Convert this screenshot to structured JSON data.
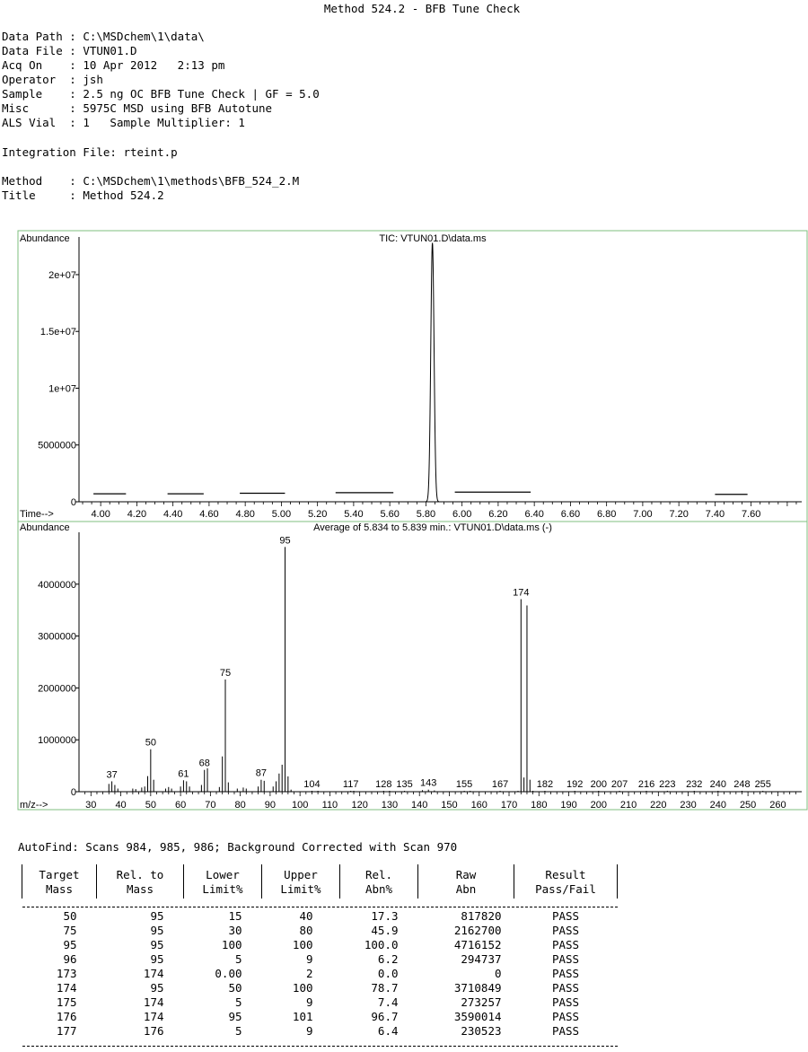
{
  "report_title": "Method 524.2 - BFB Tune Check",
  "header": [
    {
      "key": "Data Path ",
      "value": "C:\\MSDchem\\1\\data\\"
    },
    {
      "key": "Data File ",
      "value": "VTUN01.D"
    },
    {
      "key": "Acq On    ",
      "value": "10 Apr 2012   2:13 pm"
    },
    {
      "key": "Operator  ",
      "value": "jsh"
    },
    {
      "key": "Sample    ",
      "value": "2.5 ng OC BFB Tune Check | GF = 5.0"
    },
    {
      "key": "Misc      ",
      "value": "5975C MSD using BFB Autotune"
    },
    {
      "key": "ALS Vial  ",
      "value": "1   Sample Multiplier: 1"
    }
  ],
  "integration_file": "Integration File: rteint.p",
  "method_lines": [
    {
      "key": "Method    ",
      "value": "C:\\MSDchem\\1\\methods\\BFB_524_2.M"
    },
    {
      "key": "Title     ",
      "value": "Method 524.2"
    }
  ],
  "chart_data": [
    {
      "type": "line",
      "title": "TIC: VTUN01.D\\data.ms",
      "ylabel": "Abundance",
      "xlabel": "Time-->",
      "xlim": [
        3.88,
        7.88
      ],
      "ylim": [
        0,
        23000000
      ],
      "x_ticks": [
        "4.00",
        "4.20",
        "4.40",
        "4.60",
        "4.80",
        "5.00",
        "5.20",
        "5.40",
        "5.60",
        "5.80",
        "6.00",
        "6.20",
        "6.40",
        "6.60",
        "6.80",
        "7.00",
        "7.20",
        "7.40",
        "7.60"
      ],
      "y_ticks": [
        "0",
        "5000000",
        "1e+07",
        "1.5e+07",
        "2e+07"
      ],
      "baseline_segments": [
        {
          "x": [
            3.96,
            4.14
          ],
          "y": 700000
        },
        {
          "x": [
            4.37,
            4.57
          ],
          "y": 700000
        },
        {
          "x": [
            4.77,
            5.02
          ],
          "y": 750000
        },
        {
          "x": [
            5.3,
            5.62
          ],
          "y": 800000
        },
        {
          "x": [
            5.96,
            6.38
          ],
          "y": 850000
        },
        {
          "x": [
            7.4,
            7.58
          ],
          "y": 650000
        }
      ],
      "peak": {
        "center": 5.836,
        "height": 22800000,
        "width": 0.009
      }
    },
    {
      "type": "bar",
      "title": "Average of 5.834 to 5.839 min.: VTUN01.D\\data.ms (-)",
      "ylabel": "Abundance",
      "xlabel": "m/z-->",
      "xlim": [
        26,
        268
      ],
      "ylim": [
        0,
        5000000
      ],
      "x_ticks": [
        "30",
        "40",
        "50",
        "60",
        "70",
        "80",
        "90",
        "100",
        "110",
        "120",
        "130",
        "140",
        "150",
        "160",
        "170",
        "180",
        "190",
        "200",
        "210",
        "220",
        "230",
        "240",
        "250",
        "260"
      ],
      "y_ticks": [
        "0",
        "1000000",
        "2000000",
        "3000000",
        "4000000"
      ],
      "labeled_peaks": [
        {
          "mz": 37,
          "abn": 200000,
          "label": "37"
        },
        {
          "mz": 50,
          "abn": 817820,
          "label": "50"
        },
        {
          "mz": 61,
          "abn": 220000,
          "label": "61"
        },
        {
          "mz": 68,
          "abn": 420000,
          "label": "68"
        },
        {
          "mz": 75,
          "abn": 2162700,
          "label": "75"
        },
        {
          "mz": 87,
          "abn": 230000,
          "label": "87"
        },
        {
          "mz": 95,
          "abn": 4716152,
          "label": "95"
        },
        {
          "mz": 104,
          "abn": 10000,
          "label": "104"
        },
        {
          "mz": 117,
          "abn": 12000,
          "label": "117"
        },
        {
          "mz": 128,
          "abn": 12000,
          "label": "128"
        },
        {
          "mz": 135,
          "abn": 10000,
          "label": "135"
        },
        {
          "mz": 143,
          "abn": 40000,
          "label": "143"
        },
        {
          "mz": 155,
          "abn": 10000,
          "label": "155"
        },
        {
          "mz": 167,
          "abn": 10000,
          "label": "167"
        },
        {
          "mz": 174,
          "abn": 3710849,
          "label": "174"
        },
        {
          "mz": 182,
          "abn": 10000,
          "label": "182"
        },
        {
          "mz": 192,
          "abn": 8000,
          "label": "192"
        },
        {
          "mz": 200,
          "abn": 8000,
          "label": "200"
        },
        {
          "mz": 207,
          "abn": 10000,
          "label": "207"
        },
        {
          "mz": 216,
          "abn": 8000,
          "label": "216"
        },
        {
          "mz": 223,
          "abn": 8000,
          "label": "223"
        },
        {
          "mz": 232,
          "abn": 8000,
          "label": "232"
        },
        {
          "mz": 240,
          "abn": 8000,
          "label": "240"
        },
        {
          "mz": 248,
          "abn": 8000,
          "label": "248"
        },
        {
          "mz": 255,
          "abn": 8000,
          "label": "255"
        }
      ],
      "minor_peaks": [
        {
          "mz": 36,
          "abn": 150000
        },
        {
          "mz": 38,
          "abn": 130000
        },
        {
          "mz": 39,
          "abn": 60000
        },
        {
          "mz": 44,
          "abn": 60000
        },
        {
          "mz": 45,
          "abn": 50000
        },
        {
          "mz": 47,
          "abn": 80000
        },
        {
          "mz": 48,
          "abn": 100000
        },
        {
          "mz": 49,
          "abn": 300000
        },
        {
          "mz": 51,
          "abn": 230000
        },
        {
          "mz": 55,
          "abn": 60000
        },
        {
          "mz": 56,
          "abn": 90000
        },
        {
          "mz": 57,
          "abn": 60000
        },
        {
          "mz": 60,
          "abn": 100000
        },
        {
          "mz": 62,
          "abn": 200000
        },
        {
          "mz": 63,
          "abn": 100000
        },
        {
          "mz": 67,
          "abn": 130000
        },
        {
          "mz": 69,
          "abn": 450000
        },
        {
          "mz": 73,
          "abn": 90000
        },
        {
          "mz": 74,
          "abn": 680000
        },
        {
          "mz": 76,
          "abn": 180000
        },
        {
          "mz": 79,
          "abn": 60000
        },
        {
          "mz": 81,
          "abn": 80000
        },
        {
          "mz": 82,
          "abn": 60000
        },
        {
          "mz": 86,
          "abn": 100000
        },
        {
          "mz": 88,
          "abn": 210000
        },
        {
          "mz": 91,
          "abn": 100000
        },
        {
          "mz": 92,
          "abn": 200000
        },
        {
          "mz": 93,
          "abn": 350000
        },
        {
          "mz": 94,
          "abn": 520000
        },
        {
          "mz": 96,
          "abn": 294737
        },
        {
          "mz": 97,
          "abn": 40000
        },
        {
          "mz": 106,
          "abn": 10000
        },
        {
          "mz": 118,
          "abn": 12000
        },
        {
          "mz": 130,
          "abn": 10000
        },
        {
          "mz": 141,
          "abn": 30000
        },
        {
          "mz": 145,
          "abn": 25000
        },
        {
          "mz": 157,
          "abn": 10000
        },
        {
          "mz": 173,
          "abn": 0
        },
        {
          "mz": 175,
          "abn": 273257
        },
        {
          "mz": 176,
          "abn": 3590014
        },
        {
          "mz": 177,
          "abn": 230523
        },
        {
          "mz": 178,
          "abn": 15000
        }
      ]
    }
  ],
  "autofind": "AutoFind: Scans 984, 985, 986; Background Corrected with Scan 970",
  "table": {
    "headers": [
      [
        "Target",
        "Mass"
      ],
      [
        "Rel. to",
        "Mass"
      ],
      [
        "Lower",
        "Limit%"
      ],
      [
        "Upper",
        "Limit%"
      ],
      [
        "Rel.",
        "Abn%"
      ],
      [
        "Raw",
        "Abn"
      ],
      [
        "Result",
        "Pass/Fail"
      ]
    ],
    "rows": [
      [
        "50",
        "95",
        "15",
        "40",
        "17.3",
        "817820",
        "PASS"
      ],
      [
        "75",
        "95",
        "30",
        "80",
        "45.9",
        "2162700",
        "PASS"
      ],
      [
        "95",
        "95",
        "100",
        "100",
        "100.0",
        "4716152",
        "PASS"
      ],
      [
        "96",
        "95",
        "5",
        "9",
        "6.2",
        "294737",
        "PASS"
      ],
      [
        "173",
        "174",
        "0.00",
        "2",
        "0.0",
        "0",
        "PASS"
      ],
      [
        "174",
        "95",
        "50",
        "100",
        "78.7",
        "3710849",
        "PASS"
      ],
      [
        "175",
        "174",
        "5",
        "9",
        "7.4",
        "273257",
        "PASS"
      ],
      [
        "176",
        "174",
        "95",
        "101",
        "96.7",
        "3590014",
        "PASS"
      ],
      [
        "177",
        "176",
        "5",
        "9",
        "6.4",
        "230523",
        "PASS"
      ]
    ]
  }
}
